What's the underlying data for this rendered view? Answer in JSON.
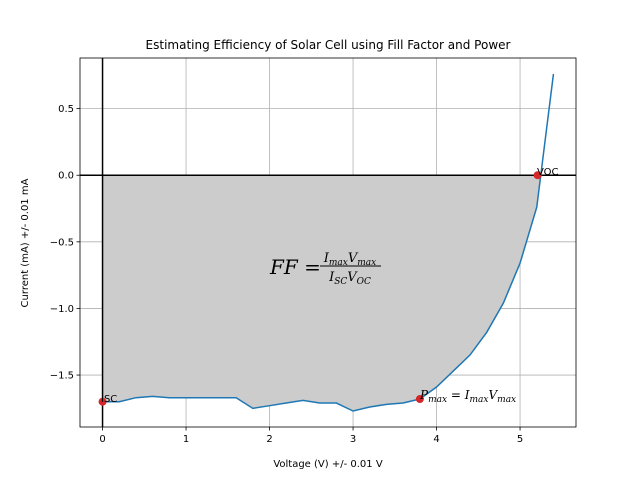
{
  "chart_data": {
    "type": "line",
    "title": "Estimating Efficiency of Solar Cell using Fill Factor and Power",
    "xlabel": "Voltage (V) +/- 0.01 V",
    "ylabel": "Current (mA) +/- 0.01 mA",
    "xlim": [
      -0.27,
      5.67
    ],
    "ylim": [
      -1.89,
      0.88
    ],
    "x_ticks": [
      0,
      1,
      2,
      3,
      4,
      5
    ],
    "y_ticks": [
      -1.5,
      -1.0,
      -0.5,
      0.0,
      0.5
    ],
    "x_tick_labels": [
      "0",
      "1",
      "2",
      "3",
      "4",
      "5"
    ],
    "y_tick_labels": [
      "−1.5",
      "−1.0",
      "−0.5",
      "0.0",
      "0.5"
    ],
    "grid": true,
    "series": [
      {
        "color": "#1f77b4",
        "x": [
          0,
          0.2,
          0.4,
          0.6,
          0.8,
          1.0,
          1.2,
          1.4,
          1.6,
          1.8,
          2.0,
          2.2,
          2.4,
          2.6,
          2.8,
          3.0,
          3.2,
          3.4,
          3.6,
          3.8,
          4.0,
          4.2,
          4.4,
          4.6,
          4.8,
          5.0,
          5.2,
          5.4
        ],
        "y": [
          -1.7,
          -1.7,
          -1.67,
          -1.66,
          -1.67,
          -1.67,
          -1.67,
          -1.67,
          -1.67,
          -1.75,
          -1.73,
          -1.71,
          -1.69,
          -1.71,
          -1.71,
          -1.77,
          -1.74,
          -1.72,
          -1.71,
          -1.68,
          -1.59,
          -1.47,
          -1.35,
          -1.18,
          -0.96,
          -0.66,
          -0.24,
          0.76
        ]
      }
    ],
    "fill": {
      "color": "#cccccc",
      "between": "curve and y=0"
    },
    "points": [
      {
        "label": "ISC",
        "x": 0.0,
        "y": -1.7,
        "color": "#d62728"
      },
      {
        "label": "VOC",
        "x": 5.21,
        "y": 0.0,
        "color": "#d62728"
      },
      {
        "label": "Pmax",
        "x": 3.8,
        "y": -1.68,
        "color": "#d62728"
      }
    ],
    "annotations": {
      "pmax_text": "P",
      "pmax_sub": "max",
      "pmax_eq": " = I",
      "pmax_sub2": "max",
      "pmax_v": "V",
      "pmax_sub3": "max",
      "ff_lhs": "FF",
      "ff_eq": " = ",
      "ff_num_i": "I",
      "ff_num_i_sub": "max",
      "ff_num_v": "V",
      "ff_num_v_sub": "max",
      "ff_den_i": "I",
      "ff_den_i_sub": "SC",
      "ff_den_v": "V",
      "ff_den_v_sub": "OC"
    }
  }
}
